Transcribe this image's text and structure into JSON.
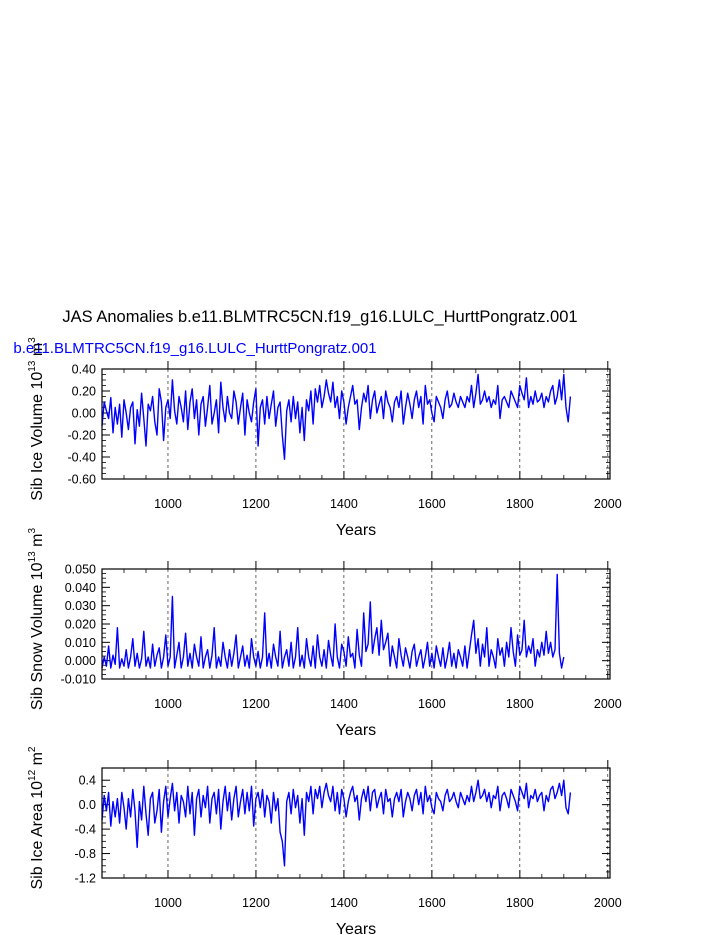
{
  "title": "JAS Anomalies b.e11.BLMTRC5CN.f19_g16.LULC_HurttPongratz.001",
  "legend_label": "b.e11.BLMTRC5CN.f19_g16.LULC_HurttPongratz.001",
  "series_color": "#0000ff",
  "chart_data": [
    {
      "type": "line",
      "ylabel": "Sib Ice Volume 10",
      "ylabel_exp": "13",
      "ylabel_unit": " m",
      "ylabel_unit_exp": "3",
      "xlabel": "Years",
      "xlim": [
        850,
        2005
      ],
      "ylim": [
        -0.6,
        0.4
      ],
      "xticks": [
        1000,
        1200,
        1400,
        1600,
        1800,
        2000
      ],
      "xtick_labels": [
        "1000",
        "1200",
        "1400",
        "1600",
        "1800",
        "2000"
      ],
      "yticks": [
        -0.6,
        -0.4,
        -0.2,
        0.0,
        0.2,
        0.4
      ],
      "ytick_labels": [
        "-0.60",
        "-0.40",
        "-0.20",
        "0.00",
        "0.20",
        "0.40"
      ],
      "x_gridlines": [
        1000,
        1200,
        1400,
        1600,
        1800,
        2000
      ],
      "series": [
        {
          "x_start": 850,
          "x_step": 5,
          "values": [
            -0.12,
            0.1,
            0.02,
            -0.05,
            0.14,
            -0.18,
            0.05,
            -0.1,
            0.08,
            -0.22,
            0.12,
            0.0,
            -0.15,
            0.05,
            0.1,
            -0.28,
            0.03,
            -0.12,
            0.18,
            -0.05,
            -0.3,
            0.08,
            0.02,
            0.15,
            -0.08,
            -0.2,
            0.22,
            0.1,
            -0.25,
            0.05,
            0.12,
            -0.05,
            0.3,
            0.02,
            -0.1,
            0.15,
            0.05,
            -0.08,
            0.2,
            -0.15,
            0.1,
            0.22,
            -0.05,
            0.12,
            -0.2,
            0.08,
            0.15,
            -0.12,
            0.05,
            0.25,
            -0.1,
            0.0,
            0.12,
            -0.18,
            0.28,
            0.05,
            -0.08,
            0.15,
            0.0,
            -0.05,
            0.2,
            0.1,
            -0.1,
            0.05,
            0.18,
            -0.2,
            0.12,
            0.0,
            -0.08,
            0.1,
            0.22,
            -0.3,
            0.05,
            0.12,
            -0.1,
            0.15,
            -0.05,
            0.08,
            0.2,
            -0.12,
            0.05,
            0.1,
            -0.2,
            -0.42,
            0.02,
            0.12,
            -0.08,
            0.15,
            -0.05,
            0.1,
            -0.18,
            0.05,
            -0.25,
            0.12,
            0.02,
            0.2,
            -0.1,
            0.22,
            0.1,
            0.25,
            0.05,
            0.15,
            0.3,
            0.18,
            0.1,
            0.28,
            0.05,
            0.15,
            -0.05,
            0.2,
            0.1,
            -0.1,
            0.05,
            0.15,
            0.25,
            0.08,
            0.12,
            -0.15,
            0.05,
            0.18,
            0.1,
            0.25,
            -0.05,
            0.12,
            0.2,
            0.0,
            0.08,
            0.15,
            -0.05,
            0.2,
            0.1,
            0.05,
            -0.08,
            0.1,
            0.15,
            0.05,
            0.2,
            -0.1,
            0.05,
            0.18,
            0.08,
            -0.05,
            0.12,
            0.2,
            0.05,
            0.15,
            -0.1,
            0.25,
            0.08,
            0.12,
            0.0,
            -0.08,
            0.15,
            0.1,
            0.05,
            -0.05,
            0.12,
            0.2,
            0.05,
            0.08,
            0.18,
            0.1,
            0.05,
            0.15,
            0.1,
            0.05,
            0.15,
            0.1,
            0.25,
            0.05,
            0.18,
            0.35,
            0.08,
            0.12,
            0.2,
            0.1,
            0.15,
            0.05,
            0.12,
            0.08,
            0.25,
            -0.05,
            0.12,
            0.15,
            0.1,
            0.05,
            0.2,
            0.15,
            0.1,
            0.05,
            0.25,
            0.18,
            0.12,
            0.32,
            0.05,
            0.15,
            0.08,
            0.2,
            0.1,
            0.12,
            0.18,
            0.05,
            0.15,
            0.1,
            0.2,
            0.25,
            0.08,
            0.15,
            0.3,
            0.12,
            0.35,
            0.05,
            -0.08,
            0.15
          ]
        }
      ]
    },
    {
      "type": "line",
      "ylabel": "Sib Snow Volume 10",
      "ylabel_exp": "13",
      "ylabel_unit": " m",
      "ylabel_unit_exp": "3",
      "xlabel": "Years",
      "xlim": [
        850,
        2005
      ],
      "ylim": [
        -0.01,
        0.05
      ],
      "xticks": [
        1000,
        1200,
        1400,
        1600,
        1800,
        2000
      ],
      "xtick_labels": [
        "1000",
        "1200",
        "1400",
        "1600",
        "1800",
        "2000"
      ],
      "yticks": [
        -0.01,
        0.0,
        0.01,
        0.02,
        0.03,
        0.04,
        0.05
      ],
      "ytick_labels": [
        "-0.010",
        "0.000",
        "0.010",
        "0.020",
        "0.030",
        "0.040",
        "0.050"
      ],
      "x_gridlines": [
        1000,
        1200,
        1400,
        1600,
        1800,
        2000
      ],
      "series": [
        {
          "x_start": 850,
          "x_step": 5,
          "values": [
            -0.004,
            0.002,
            -0.003,
            0.008,
            -0.004,
            0.003,
            -0.002,
            0.018,
            -0.004,
            0.001,
            -0.003,
            0.006,
            -0.004,
            0.002,
            0.012,
            -0.003,
            0.004,
            -0.004,
            0.001,
            0.016,
            -0.003,
            0.002,
            -0.004,
            0.009,
            -0.003,
            0.003,
            0.007,
            -0.004,
            0.002,
            0.014,
            -0.003,
            0.002,
            0.035,
            -0.004,
            0.003,
            0.01,
            -0.004,
            0.002,
            0.015,
            -0.003,
            0.004,
            -0.004,
            0.009,
            0.002,
            -0.003,
            0.013,
            -0.004,
            0.002,
            0.006,
            -0.004,
            0.003,
            0.018,
            -0.004,
            0.002,
            -0.003,
            0.01,
            0.002,
            -0.004,
            0.006,
            -0.003,
            0.004,
            0.014,
            -0.004,
            0.002,
            0.008,
            -0.003,
            0.003,
            -0.004,
            0.012,
            0.002,
            -0.003,
            0.005,
            -0.004,
            0.002,
            0.026,
            -0.003,
            0.004,
            -0.004,
            0.009,
            0.002,
            -0.003,
            0.016,
            -0.004,
            0.002,
            0.006,
            -0.003,
            0.01,
            -0.004,
            0.002,
            0.018,
            -0.003,
            0.003,
            -0.004,
            0.012,
            0.002,
            -0.003,
            0.008,
            -0.004,
            0.014,
            0.002,
            -0.003,
            0.006,
            -0.004,
            0.011,
            0.003,
            -0.003,
            0.02,
            0.002,
            -0.004,
            0.009,
            0.005,
            -0.003,
            0.013,
            0.002,
            0.004,
            -0.004,
            0.017,
            0.003,
            -0.003,
            0.026,
            0.005,
            0.009,
            0.032,
            0.004,
            0.012,
            0.018,
            0.003,
            0.022,
            0.006,
            0.01,
            0.015,
            -0.003,
            0.008,
            0.002,
            -0.004,
            0.012,
            0.003,
            -0.003,
            0.007,
            0.002,
            -0.004,
            0.005,
            0.009,
            -0.003,
            0.002,
            0.006,
            -0.004,
            0.002,
            0.01,
            -0.003,
            0.004,
            -0.004,
            0.008,
            0.002,
            -0.003,
            0.007,
            -0.004,
            0.002,
            0.01,
            -0.003,
            0.004,
            -0.004,
            0.006,
            0.002,
            -0.003,
            0.008,
            -0.004,
            0.005,
            0.014,
            0.022,
            0.004,
            0.012,
            -0.003,
            0.009,
            0.002,
            0.018,
            -0.003,
            0.006,
            0.002,
            -0.004,
            0.012,
            0.003,
            0.007,
            -0.003,
            0.01,
            0.002,
            0.018,
            0.005,
            -0.003,
            0.014,
            0.003,
            0.006,
            0.022,
            0.002,
            0.008,
            0.004,
            0.012,
            -0.003,
            0.006,
            0.002,
            0.01,
            0.003,
            0.016,
            0.004,
            0.01,
            0.002,
            0.006,
            0.047,
            0.004,
            -0.004,
            0.002
          ]
        }
      ]
    },
    {
      "type": "line",
      "ylabel": "Sib Ice Area 10",
      "ylabel_exp": "12",
      "ylabel_unit": " m",
      "ylabel_unit_exp": "2",
      "xlabel": "Years",
      "xlim": [
        850,
        2005
      ],
      "ylim": [
        -1.2,
        0.6
      ],
      "xticks": [
        1000,
        1200,
        1400,
        1600,
        1800,
        2000
      ],
      "xtick_labels": [
        "1000",
        "1200",
        "1400",
        "1600",
        "1800",
        "2000"
      ],
      "yticks": [
        -1.2,
        -0.8,
        -0.4,
        0.0,
        0.4
      ],
      "ytick_labels": [
        "-1.2",
        "-0.8",
        "-0.4",
        "0.0",
        "0.4"
      ],
      "x_gridlines": [
        1000,
        1200,
        1400,
        1600,
        1800,
        2000
      ],
      "series": [
        {
          "x_start": 850,
          "x_step": 5,
          "values": [
            -0.25,
            0.15,
            -0.1,
            0.2,
            -0.35,
            0.05,
            -0.2,
            0.1,
            -0.3,
            0.2,
            -0.05,
            -0.4,
            0.1,
            -0.2,
            0.25,
            -0.1,
            -0.7,
            0.05,
            -0.25,
            0.3,
            -0.15,
            -0.5,
            0.1,
            0.2,
            -0.3,
            -0.1,
            0.25,
            -0.45,
            0.05,
            0.3,
            -0.2,
            0.1,
            0.35,
            -0.1,
            0.2,
            -0.3,
            0.15,
            0.05,
            -0.2,
            0.3,
            -0.15,
            0.2,
            -0.5,
            0.1,
            0.25,
            -0.2,
            0.15,
            -0.05,
            0.3,
            -0.3,
            0.1,
            0.2,
            -0.15,
            0.25,
            -0.4,
            0.05,
            0.3,
            -0.1,
            0.2,
            -0.25,
            0.1,
            0.3,
            -0.2,
            0.05,
            0.25,
            -0.15,
            0.2,
            -0.1,
            0.3,
            -0.35,
            0.1,
            0.2,
            -0.05,
            0.25,
            -0.2,
            0.15,
            0.05,
            -0.3,
            0.2,
            -0.1,
            0.1,
            -0.45,
            -0.6,
            -1.0,
            0.05,
            0.2,
            -0.15,
            0.25,
            -0.05,
            0.15,
            -0.3,
            0.1,
            -0.5,
            0.2,
            0.05,
            0.3,
            -0.15,
            0.25,
            0.1,
            0.3,
            -0.05,
            0.2,
            0.35,
            0.15,
            0.05,
            0.3,
            -0.1,
            0.2,
            -0.15,
            0.25,
            0.1,
            -0.2,
            0.05,
            0.2,
            0.3,
            0.05,
            0.15,
            -0.25,
            0.1,
            0.25,
            0.05,
            0.3,
            -0.1,
            0.2,
            0.25,
            -0.05,
            0.1,
            0.2,
            -0.15,
            0.25,
            0.05,
            0.1,
            -0.2,
            0.1,
            0.2,
            0.05,
            0.25,
            -0.2,
            0.05,
            0.2,
            0.1,
            -0.1,
            0.15,
            0.25,
            0.0,
            0.2,
            -0.15,
            0.3,
            0.05,
            0.15,
            -0.05,
            -0.15,
            0.2,
            0.1,
            0.05,
            -0.1,
            0.15,
            0.25,
            0.05,
            0.1,
            0.2,
            0.05,
            -0.05,
            0.2,
            0.1,
            0.0,
            0.15,
            0.05,
            0.3,
            0.05,
            0.2,
            0.4,
            0.1,
            0.15,
            0.25,
            0.05,
            0.2,
            -0.05,
            0.15,
            0.1,
            0.3,
            -0.1,
            0.15,
            0.2,
            0.1,
            -0.05,
            0.25,
            0.15,
            0.05,
            -0.1,
            0.3,
            0.2,
            0.1,
            0.35,
            -0.05,
            0.15,
            0.1,
            0.25,
            0.05,
            0.15,
            0.2,
            -0.1,
            0.15,
            0.05,
            0.25,
            0.3,
            0.1,
            0.2,
            0.35,
            0.15,
            0.4,
            -0.05,
            -0.15,
            0.2
          ]
        }
      ]
    }
  ]
}
